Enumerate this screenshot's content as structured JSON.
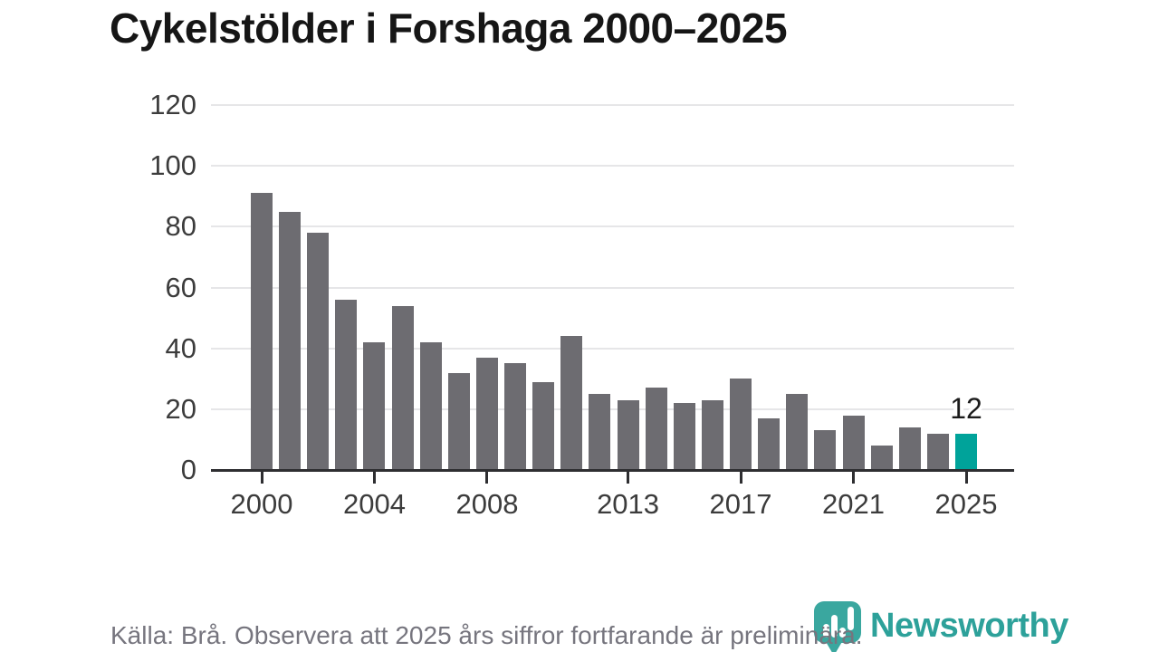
{
  "title": "Cykelstölder i Forshaga 2000–2025",
  "footer": {
    "source_note": "Källa: Brå. Observera att 2025 års siffror fortfarande är preliminära."
  },
  "logo": {
    "wordmark": "Newsworthy",
    "icon": "newsworthy-badge-bar-chart-icon",
    "wordmark_color": "#2da19a",
    "badge_color": "#3aa79f"
  },
  "chart_data": {
    "type": "bar",
    "title": "Cykelstölder i Forshaga 2000–2025",
    "categories": [
      2000,
      2001,
      2002,
      2003,
      2004,
      2005,
      2006,
      2007,
      2008,
      2009,
      2010,
      2011,
      2012,
      2013,
      2014,
      2015,
      2016,
      2017,
      2018,
      2019,
      2020,
      2021,
      2022,
      2023,
      2024,
      2025
    ],
    "values": [
      91,
      85,
      78,
      56,
      42,
      54,
      42,
      32,
      37,
      35,
      29,
      44,
      25,
      23,
      27,
      22,
      23,
      30,
      17,
      25,
      13,
      18,
      8,
      14,
      12,
      12
    ],
    "highlight_index": 25,
    "highlight_label": "12",
    "bar_color": "#6d6c71",
    "highlight_color": "#00a39a",
    "axis_color": "#2e2e31",
    "grid_color": "#e6e6e8",
    "y_ticks": [
      0,
      20,
      40,
      60,
      80,
      100,
      120
    ],
    "x_tick_labels": {
      "0": "2000",
      "4": "2004",
      "8": "2008",
      "13": "2013",
      "17": "2017",
      "21": "2021",
      "25": "2025"
    },
    "ylim": [
      0,
      120
    ],
    "grid": true,
    "legend": false,
    "xlabel": "",
    "ylabel": ""
  }
}
